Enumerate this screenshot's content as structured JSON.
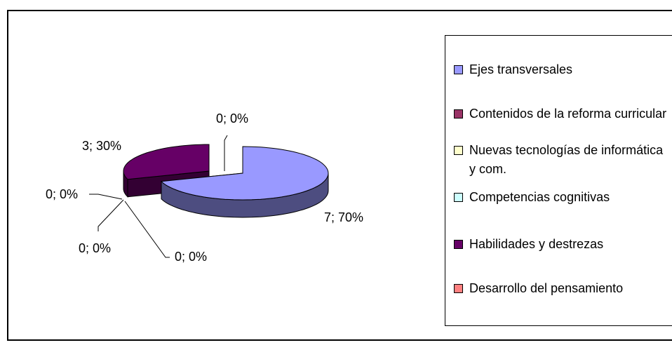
{
  "chart_data": {
    "type": "pie",
    "categories": [
      "Ejes transversales",
      "Contenidos de la reforma curricular",
      "Nuevas tecnologías de informática y com.",
      "Competencias cognitivas",
      "Habilidades y destrezas",
      "Desarrollo del pensamiento"
    ],
    "values": [
      7,
      0,
      0,
      0,
      3,
      0
    ],
    "value_labels": [
      "7; 70%",
      "0; 0%",
      "0; 0%",
      "0; 0%",
      "3; 30%",
      "0; 0%"
    ],
    "colors": [
      "#9999ff",
      "#993366",
      "#ffffcc",
      "#ccffff",
      "#660066",
      "#ff8080"
    ],
    "legend": "right"
  }
}
